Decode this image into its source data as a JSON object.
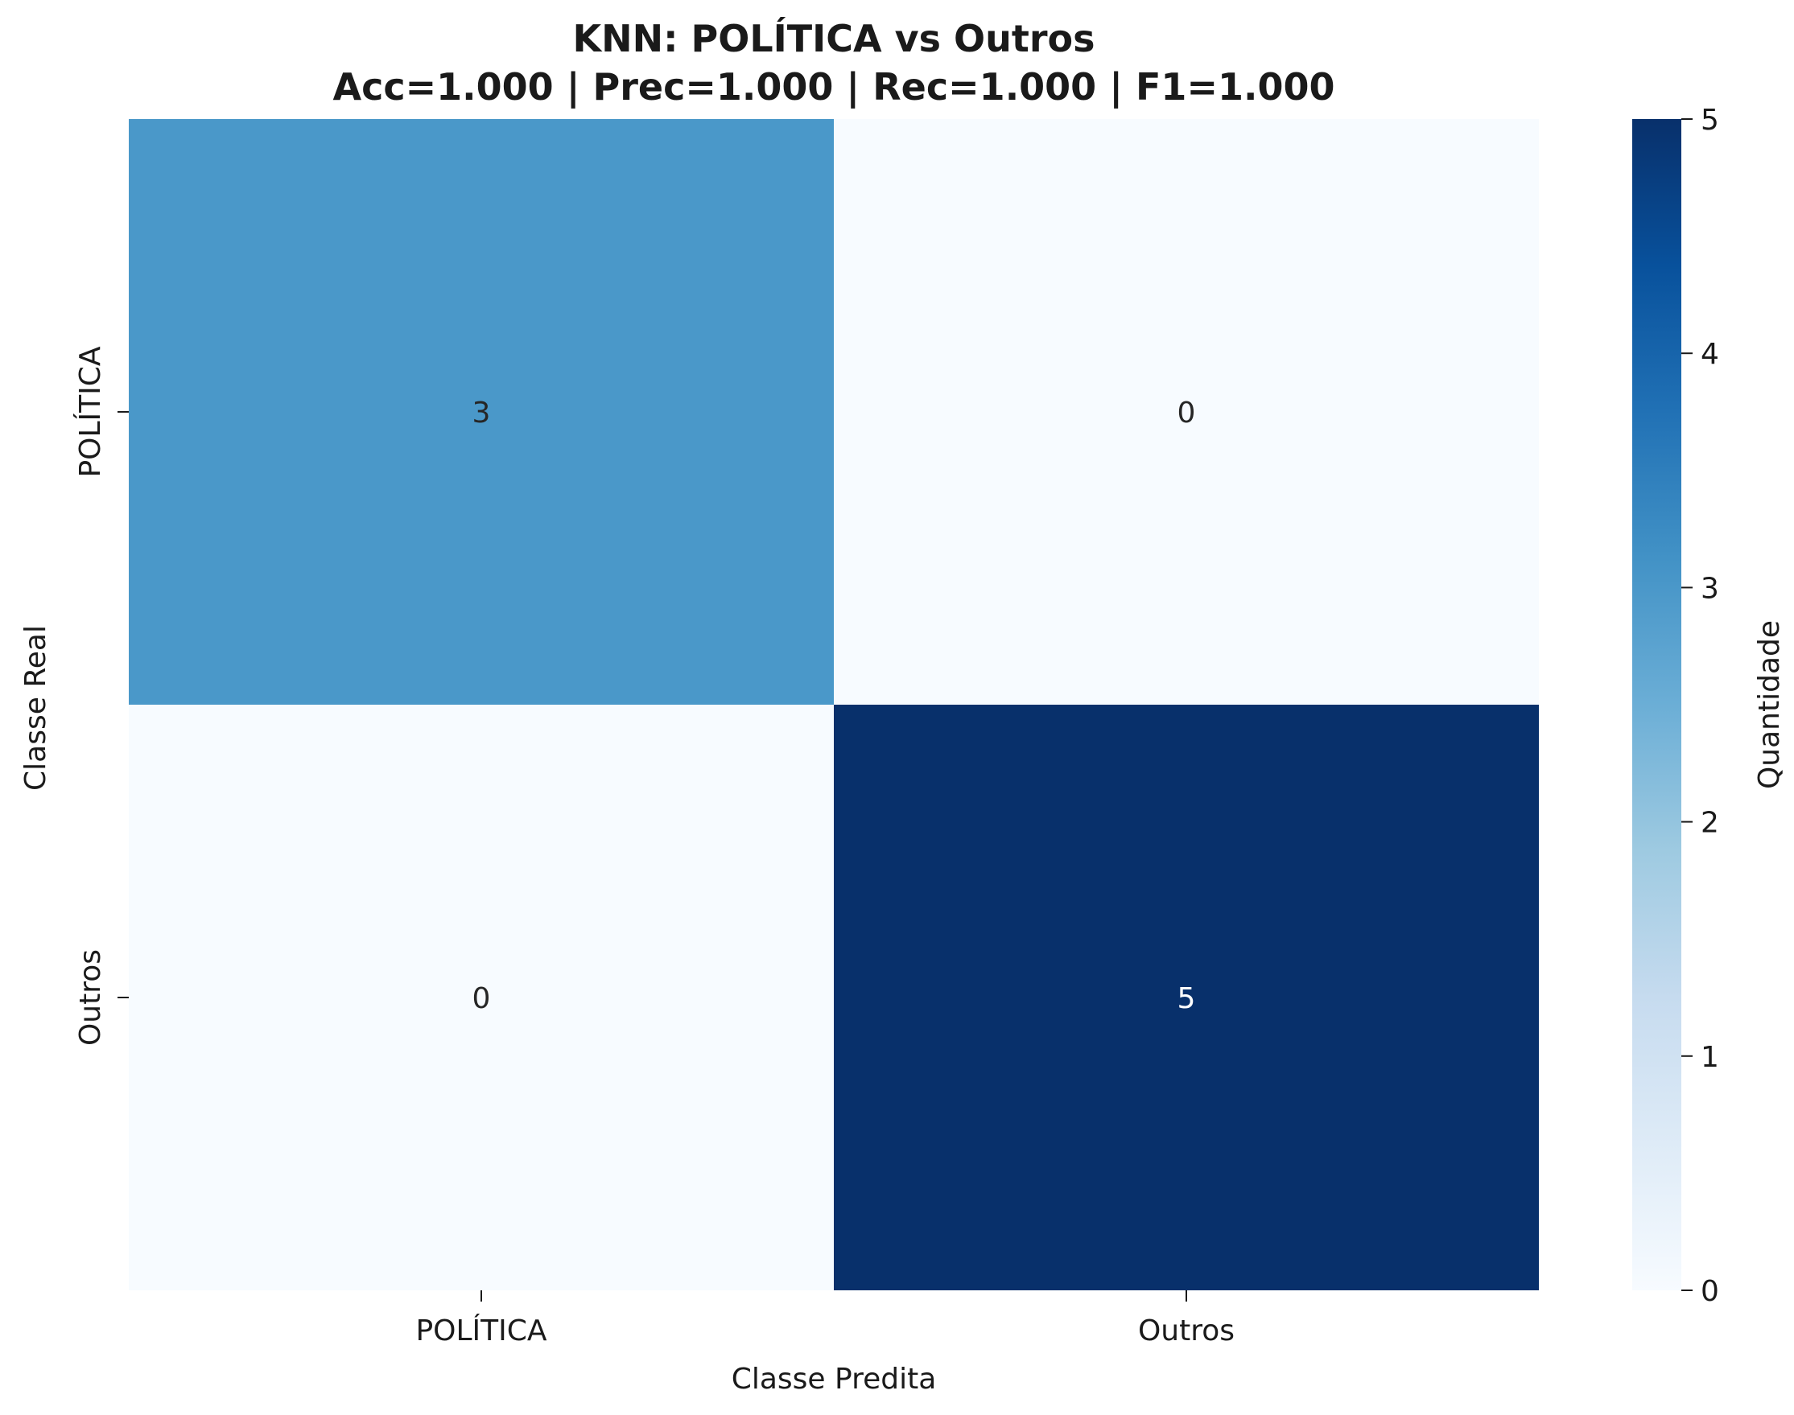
{
  "chart_data": {
    "type": "heatmap",
    "title": "KNN: POLÍTICA vs Outros",
    "subtitle": "Acc=1.000 | Prec=1.000 | Rec=1.000 | F1=1.000",
    "xlabel": "Classe Predita",
    "ylabel": "Classe Real",
    "x_categories": [
      "POLÍTICA",
      "Outros"
    ],
    "y_categories": [
      "POLÍTICA",
      "Outros"
    ],
    "values": [
      [
        3,
        0
      ],
      [
        0,
        5
      ]
    ],
    "colorbar": {
      "label": "Quantidade",
      "range": [
        0,
        5
      ],
      "ticks": [
        0,
        1,
        2,
        3,
        4,
        5
      ],
      "colormap": "Blues"
    },
    "grid": false,
    "legend": "colorbar-right"
  }
}
